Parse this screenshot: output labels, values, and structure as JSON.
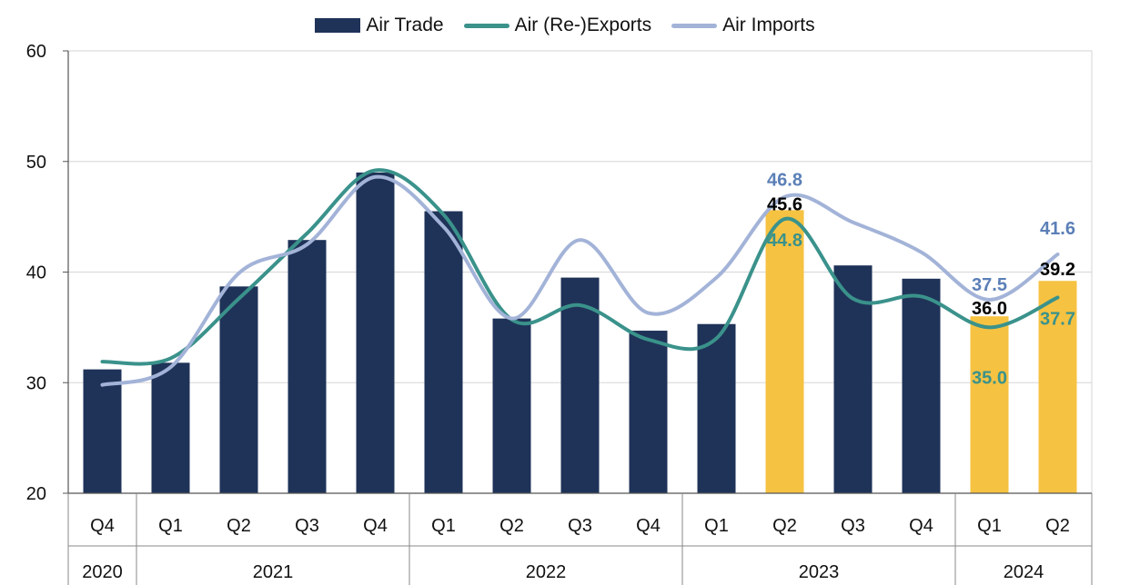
{
  "chart_data": {
    "type": "bar",
    "categories": [
      "Q4",
      "Q1",
      "Q2",
      "Q3",
      "Q4",
      "Q1",
      "Q2",
      "Q3",
      "Q4",
      "Q1",
      "Q2",
      "Q3",
      "Q4",
      "Q1",
      "Q2"
    ],
    "years": [
      {
        "label": "2020",
        "count": 1
      },
      {
        "label": "2021",
        "count": 4
      },
      {
        "label": "2022",
        "count": 4
      },
      {
        "label": "2023",
        "count": 4
      },
      {
        "label": "2024",
        "count": 2
      }
    ],
    "ylim": [
      20,
      60
    ],
    "yticks": [
      "20",
      "30",
      "40",
      "50",
      "60"
    ],
    "grid": true,
    "legend_position": "top-center",
    "series": [
      {
        "name": "Air Trade",
        "kind": "bar",
        "color": "#1f3358",
        "values": [
          31.2,
          31.8,
          38.7,
          42.9,
          49.0,
          45.5,
          35.8,
          39.5,
          34.7,
          35.3,
          45.6,
          40.6,
          39.4,
          36.0,
          39.2
        ]
      },
      {
        "name": "Air (Re-)Exports",
        "kind": "line",
        "color": "#3a928b",
        "values": [
          31.9,
          32.2,
          37.6,
          43.5,
          49.2,
          45.2,
          35.7,
          37.0,
          33.9,
          34.0,
          44.8,
          37.6,
          37.8,
          35.0,
          37.7
        ]
      },
      {
        "name": "Air Imports",
        "kind": "line",
        "color": "#a3b3d8",
        "values": [
          29.8,
          31.4,
          39.9,
          42.5,
          48.6,
          44.1,
          35.8,
          42.9,
          36.3,
          39.5,
          46.8,
          44.5,
          41.8,
          37.5,
          41.6
        ]
      }
    ],
    "highlight_indices": [
      10,
      13,
      14
    ],
    "highlight_color": "#f6c242",
    "data_labels": [
      {
        "index": 10,
        "series": "Air Imports",
        "text": "46.8",
        "color": "#5b7fb7"
      },
      {
        "index": 10,
        "series": "Air Trade",
        "text": "45.6",
        "color": "#000000"
      },
      {
        "index": 10,
        "series": "Air (Re-)Exports",
        "text": "44.8",
        "color": "#3a928b"
      },
      {
        "index": 13,
        "series": "Air Imports",
        "text": "37.5",
        "color": "#5b7fb7"
      },
      {
        "index": 13,
        "series": "Air Trade",
        "text": "36.0",
        "color": "#000000"
      },
      {
        "index": 13,
        "series": "Air (Re-)Exports",
        "text": "35.0",
        "color": "#3a928b"
      },
      {
        "index": 14,
        "series": "Air Imports",
        "text": "41.6",
        "color": "#5b7fb7"
      },
      {
        "index": 14,
        "series": "Air Trade",
        "text": "39.2",
        "color": "#000000"
      },
      {
        "index": 14,
        "series": "Air (Re-)Exports",
        "text": "37.7",
        "color": "#3a928b"
      }
    ]
  }
}
